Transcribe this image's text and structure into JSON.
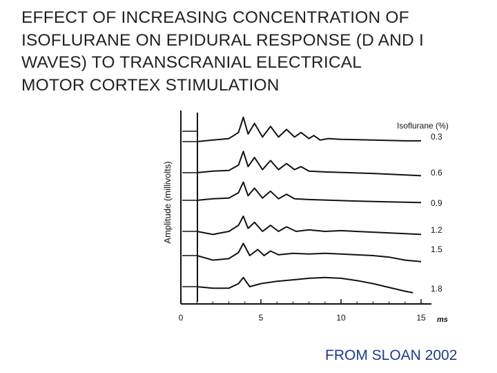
{
  "slide": {
    "title": "EFFECT OF INCREASING CONCENTRATION OF\nISOFLURANE ON EPIDURAL RESPONSE (D AND I\nWAVES) TO TRANSCRANIAL ELECTRICAL\nMOTOR CORTEX STIMULATION",
    "source": "FROM SLOAN 2002"
  },
  "chart_data": {
    "type": "line",
    "xlabel": "ms",
    "ylabel": "Amplitude (millivolts)",
    "legend_title": "Isoflurane (%)",
    "legend_placement": "right",
    "xlim": [
      0,
      15
    ],
    "x_ticks": [
      0,
      5,
      10,
      15
    ],
    "grid": false,
    "line_color": "#111111",
    "series": [
      {
        "name": "0.3",
        "x": [
          1.0,
          2.0,
          3.0,
          3.6,
          3.9,
          4.2,
          4.6,
          5.1,
          5.6,
          6.1,
          6.6,
          7.1,
          7.5,
          8.0,
          8.3,
          8.7,
          9.2,
          10.0,
          12.0,
          14.0,
          15.0
        ],
        "y": [
          0.0,
          0.1,
          0.2,
          0.6,
          1.6,
          0.5,
          1.2,
          0.3,
          1.0,
          0.3,
          0.8,
          0.3,
          0.6,
          0.2,
          0.4,
          0.1,
          0.2,
          0.15,
          0.1,
          0.05,
          0.05
        ]
      },
      {
        "name": "0.6",
        "x": [
          1.0,
          2.0,
          3.0,
          3.6,
          3.9,
          4.2,
          4.6,
          5.1,
          5.6,
          6.1,
          6.6,
          7.1,
          7.5,
          8.0,
          9.0,
          10.5,
          12.0,
          14.0,
          15.0
        ],
        "y": [
          0.0,
          0.1,
          0.15,
          0.5,
          1.4,
          0.4,
          1.0,
          0.2,
          0.8,
          0.2,
          0.6,
          0.2,
          0.4,
          0.1,
          0.05,
          0.0,
          -0.05,
          -0.15,
          -0.2
        ]
      },
      {
        "name": "0.9",
        "x": [
          1.0,
          2.0,
          3.0,
          3.6,
          3.9,
          4.2,
          4.6,
          5.1,
          5.6,
          6.1,
          6.6,
          7.1,
          8.0,
          9.5,
          11.0,
          13.0,
          15.0
        ],
        "y": [
          0.0,
          0.1,
          0.15,
          0.5,
          1.2,
          0.3,
          0.8,
          0.15,
          0.6,
          0.1,
          0.4,
          0.1,
          0.05,
          0.0,
          -0.05,
          -0.1,
          -0.15
        ]
      },
      {
        "name": "1.2",
        "x": [
          1.0,
          2.0,
          3.0,
          3.6,
          3.9,
          4.2,
          4.6,
          5.1,
          5.6,
          6.1,
          6.6,
          7.2,
          8.0,
          9.0,
          10.0,
          12.0,
          14.0,
          15.0
        ],
        "y": [
          0.0,
          -0.2,
          0.0,
          0.4,
          1.0,
          0.2,
          0.6,
          0.0,
          0.4,
          0.0,
          0.3,
          0.0,
          0.1,
          0.0,
          0.05,
          -0.05,
          -0.15,
          -0.2
        ]
      },
      {
        "name": "1.5",
        "x": [
          1.0,
          2.0,
          3.0,
          3.6,
          3.9,
          4.3,
          4.8,
          5.2,
          5.6,
          6.1,
          7.0,
          8.0,
          9.0,
          10.0,
          11.0,
          12.0,
          13.0,
          14.0,
          15.0
        ],
        "y": [
          0.0,
          -0.3,
          -0.2,
          0.2,
          0.8,
          0.0,
          0.4,
          0.0,
          0.3,
          0.05,
          0.15,
          0.1,
          0.15,
          0.1,
          0.05,
          0.0,
          -0.1,
          -0.3,
          -0.4
        ]
      },
      {
        "name": "1.8",
        "x": [
          1.0,
          2.0,
          3.0,
          3.6,
          3.9,
          4.3,
          5.0,
          6.0,
          7.0,
          8.0,
          9.0,
          10.0,
          11.0,
          12.0,
          13.0,
          14.0,
          14.5
        ],
        "y": [
          0.0,
          -0.1,
          -0.1,
          0.2,
          0.6,
          0.0,
          0.2,
          0.35,
          0.45,
          0.55,
          0.6,
          0.55,
          0.4,
          0.2,
          -0.05,
          -0.3,
          -0.4
        ]
      }
    ]
  }
}
